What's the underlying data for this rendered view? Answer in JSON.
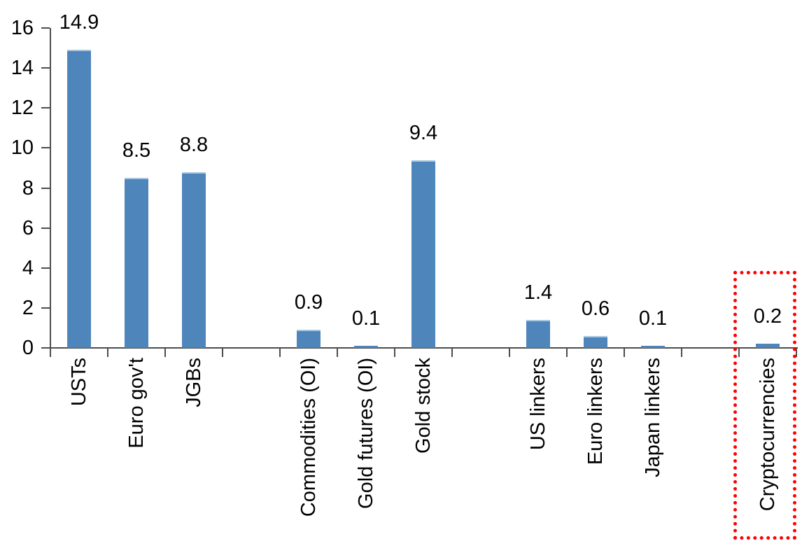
{
  "chart_data": {
    "type": "bar",
    "title": "",
    "xlabel": "",
    "ylabel": "",
    "categories": [
      "USTs",
      "Euro gov't",
      "JGBs",
      "",
      "Commodities (OI)",
      "Gold futures (OI)",
      "Gold stock",
      "",
      "US linkers",
      "Euro linkers",
      "Japan linkers",
      "",
      "Cryptocurrencies"
    ],
    "values": [
      14.9,
      8.5,
      8.8,
      null,
      0.9,
      0.1,
      9.4,
      null,
      1.4,
      0.6,
      0.1,
      null,
      0.2
    ],
    "value_labels": [
      "14.9",
      "8.5",
      "8.8",
      "",
      "0.9",
      "0.1",
      "9.4",
      "",
      "1.4",
      "0.6",
      "0.1",
      "",
      "0.2"
    ],
    "yticks": [
      0,
      2,
      4,
      6,
      8,
      10,
      12,
      14,
      16
    ],
    "ylim": [
      0,
      16
    ],
    "grid": false,
    "legend": false,
    "bar_color": "#4E86BC",
    "bar_edge_color": "#A9C7E1",
    "axis_color": "#4d4d4d",
    "text_color": "#000000",
    "highlight": {
      "category": "Cryptocurrencies",
      "style": "red-dotted-box",
      "color": "#FF0000"
    }
  }
}
